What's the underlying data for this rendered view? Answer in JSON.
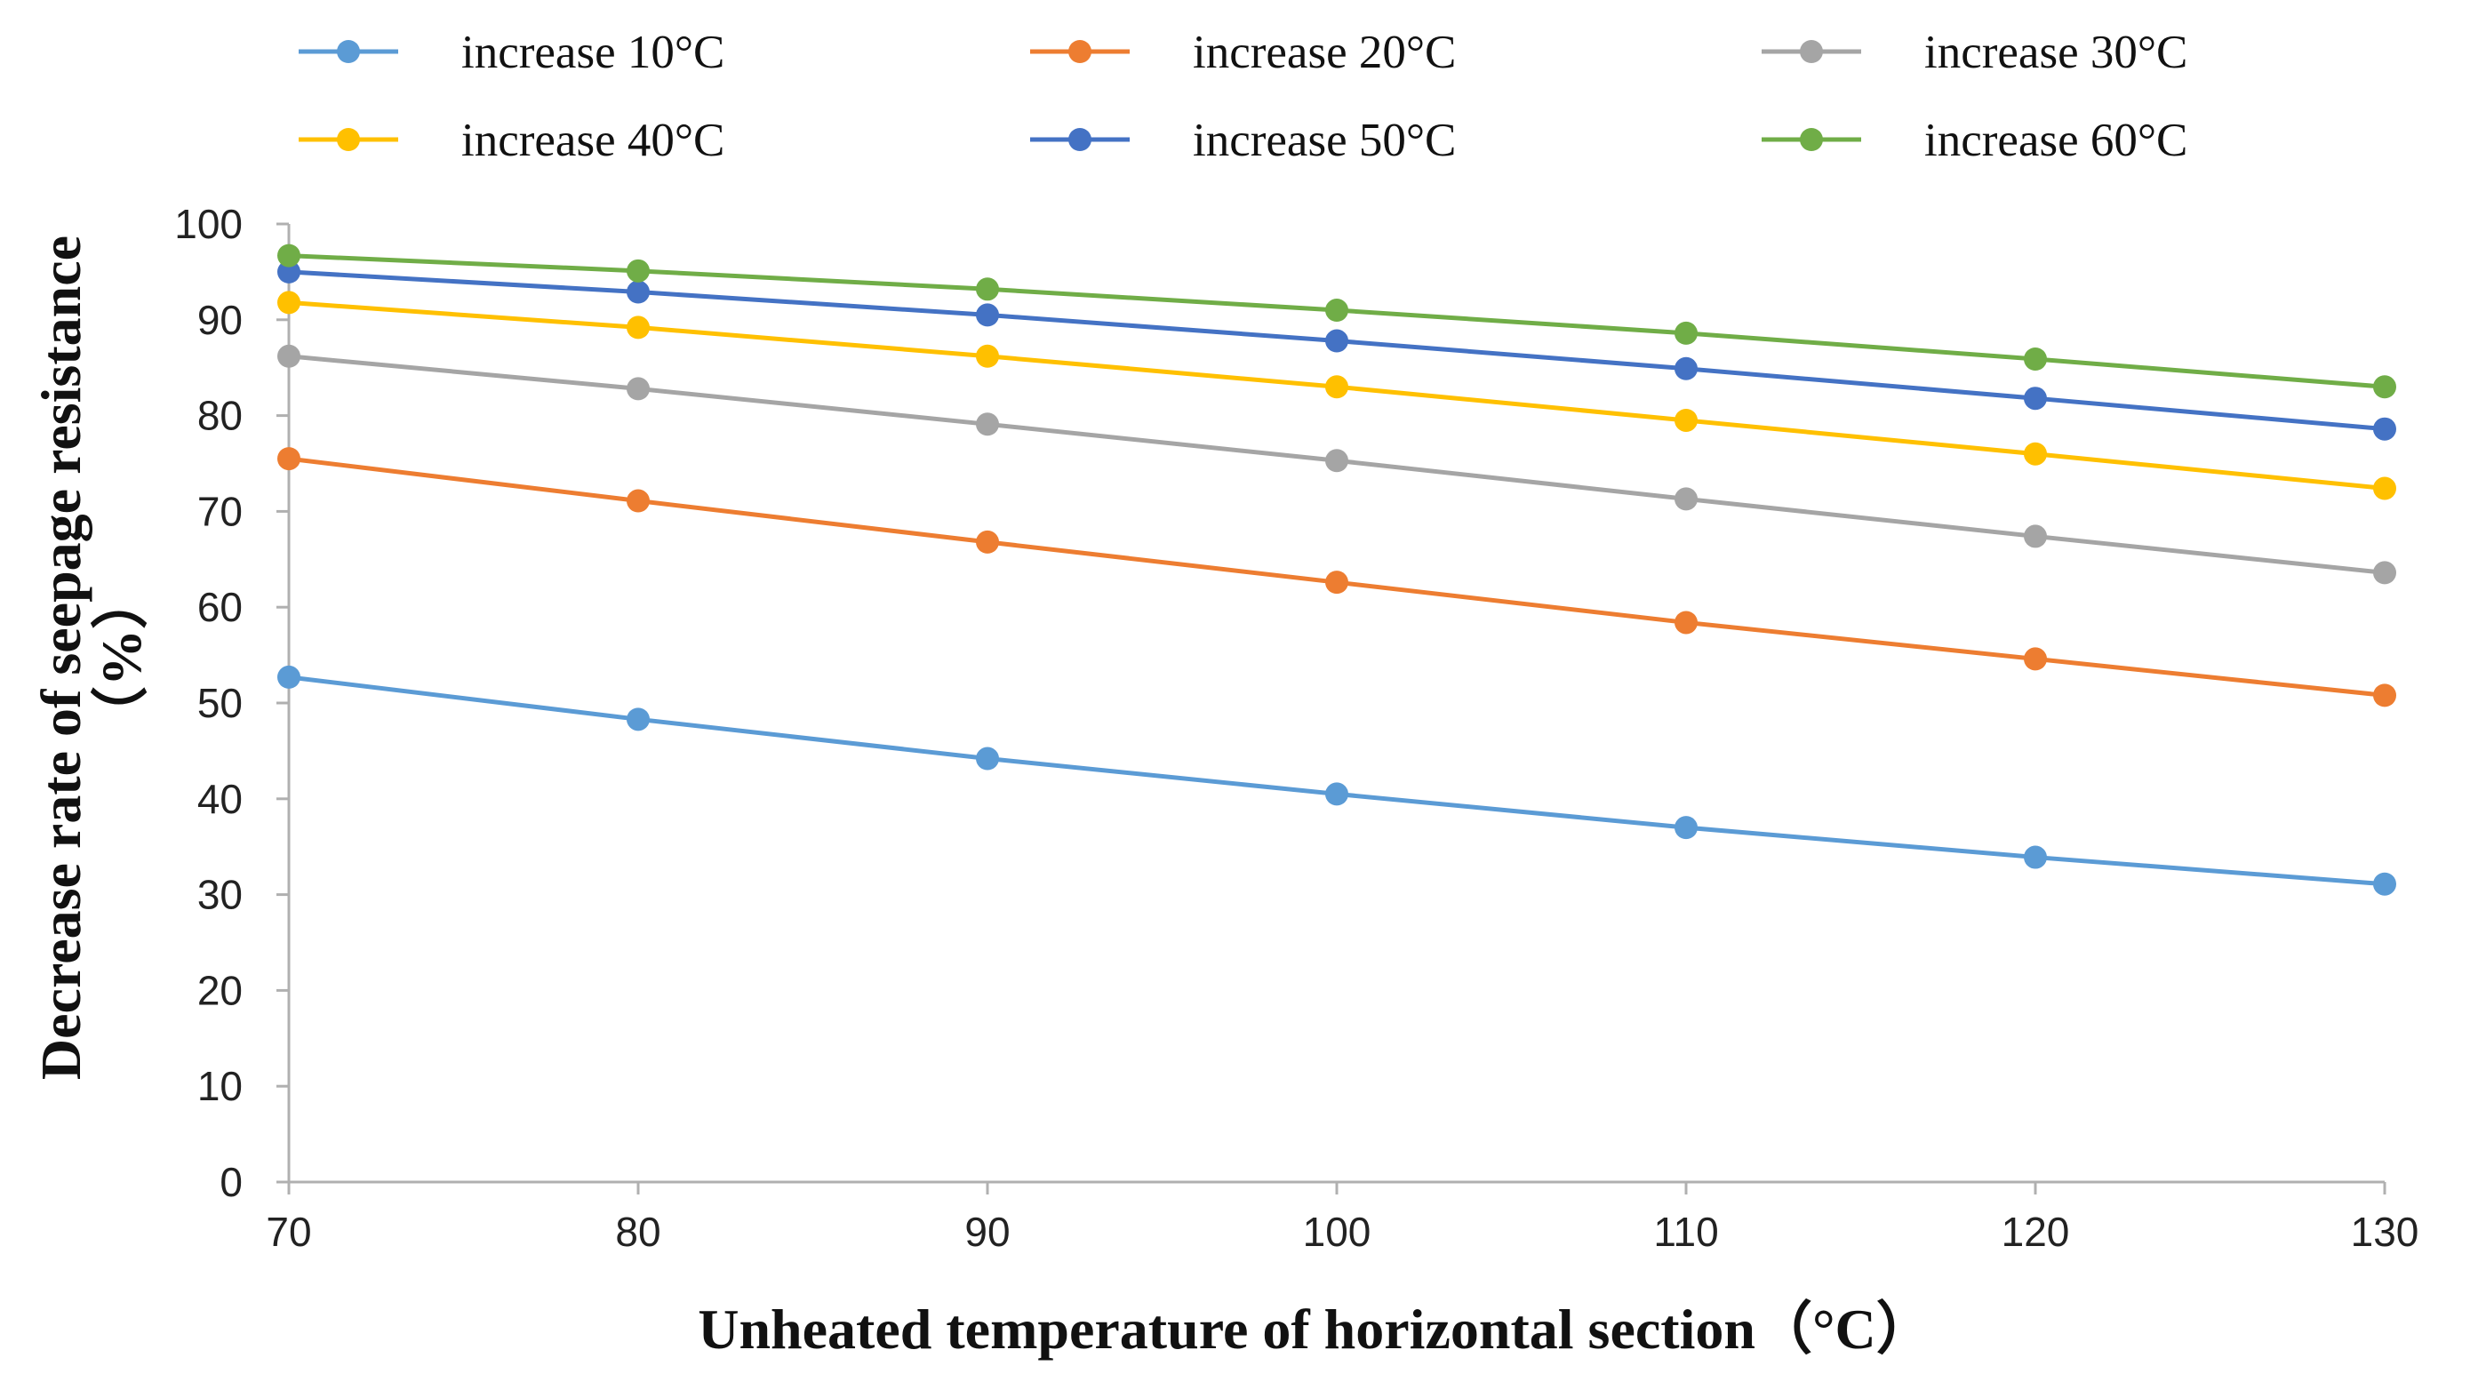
{
  "chart_data": {
    "type": "line",
    "title": "",
    "xlabel": "Unheated temperature of horizontal section（°C）",
    "ylabel_line1": "Decrease rate of seepage resistance",
    "ylabel_line2": "（%）",
    "x": [
      70,
      80,
      90,
      100,
      110,
      120,
      130
    ],
    "x_tick_labels": [
      "70",
      "80",
      "90",
      "100",
      "110",
      "120",
      "130"
    ],
    "xlim": [
      70,
      130
    ],
    "ylim": [
      0,
      100
    ],
    "y_tick_labels": [
      "0",
      "10",
      "20",
      "30",
      "40",
      "50",
      "60",
      "70",
      "80",
      "90",
      "100"
    ],
    "grid": false,
    "legend_position": "top",
    "series": [
      {
        "name": "increase 10°C",
        "color": "#5B9BD5",
        "values": [
          52.7,
          48.3,
          44.2,
          40.5,
          37.0,
          33.9,
          31.1
        ]
      },
      {
        "name": "increase 20°C",
        "color": "#ED7D31",
        "values": [
          75.5,
          71.1,
          66.8,
          62.6,
          58.4,
          54.6,
          50.8
        ]
      },
      {
        "name": "increase 30°C",
        "color": "#A5A5A5",
        "values": [
          86.2,
          82.8,
          79.1,
          75.3,
          71.3,
          67.4,
          63.6
        ]
      },
      {
        "name": "increase 40°C",
        "color": "#FFC000",
        "values": [
          91.8,
          89.2,
          86.2,
          83.0,
          79.5,
          76.0,
          72.4
        ]
      },
      {
        "name": "increase 50°C",
        "color": "#4472C4",
        "values": [
          95.0,
          92.9,
          90.5,
          87.8,
          84.9,
          81.8,
          78.6
        ]
      },
      {
        "name": "increase 60°C",
        "color": "#70AD47",
        "values": [
          96.7,
          95.1,
          93.2,
          91.0,
          88.6,
          85.9,
          83.0
        ]
      }
    ]
  }
}
